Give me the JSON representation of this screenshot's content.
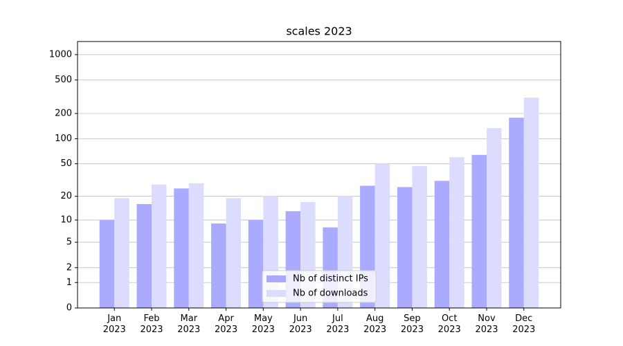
{
  "chart_data": {
    "type": "bar",
    "title": "scales 2023",
    "categories": [
      "Jan\n2023",
      "Feb\n2023",
      "Mar\n2023",
      "Apr\n2023",
      "May\n2023",
      "Jun\n2023",
      "Jul\n2023",
      "Aug\n2023",
      "Sep\n2023",
      "Oct\n2023",
      "Nov\n2023",
      "Dec\n2023"
    ],
    "series": [
      {
        "name": "Nb of distinct IPs",
        "color": "#aaaaff",
        "values": [
          10,
          16,
          25,
          9,
          10,
          13,
          8,
          27,
          26,
          31,
          64,
          178
        ]
      },
      {
        "name": "Nb of downloads",
        "color": "#dcdcff",
        "values": [
          19,
          28,
          29,
          19,
          20,
          17,
          20,
          50,
          47,
          60,
          134,
          309
        ]
      }
    ],
    "yscale": "log1p",
    "ylim": [
      0,
      1430
    ],
    "yticks": [
      0,
      1,
      2,
      5,
      10,
      20,
      50,
      100,
      200,
      500,
      1000
    ],
    "grid": true,
    "legend": "lower center"
  }
}
